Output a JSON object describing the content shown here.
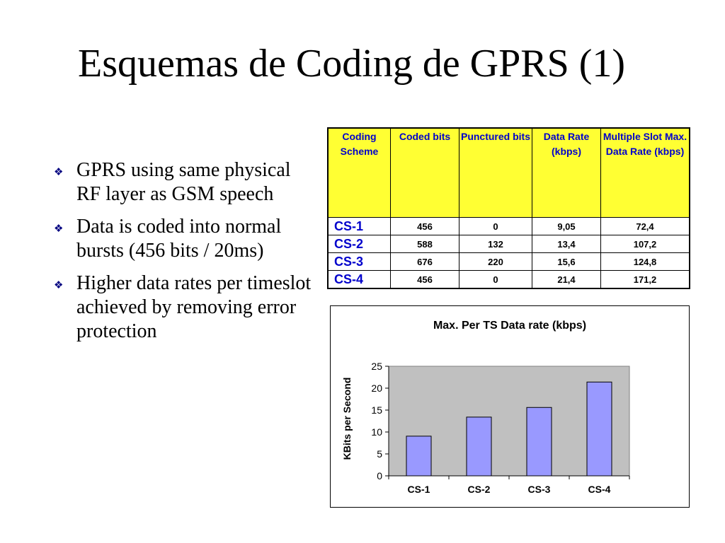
{
  "slide": {
    "title": "Esquemas de Coding de GPRS (1)",
    "bullets": [
      "GPRS using same physical RF layer as GSM speech",
      "Data is coded into normal bursts (456 bits / 20ms)",
      "Higher data rates per timeslot achieved by removing error protection"
    ]
  },
  "table": {
    "headers": [
      "Coding Scheme",
      "Coded bits",
      "Punctured bits",
      "Data Rate (kbps)",
      "Multiple Slot Max. Data Rate (kbps)"
    ],
    "rows": [
      [
        "CS-1",
        "456",
        "0",
        "9,05",
        "72,4"
      ],
      [
        "CS-2",
        "588",
        "132",
        "13,4",
        "107,2"
      ],
      [
        "CS-3",
        "676",
        "220",
        "15,6",
        "124,8"
      ],
      [
        "CS-4",
        "456",
        "0",
        "21,4",
        "171,2"
      ]
    ]
  },
  "chart_data": {
    "type": "bar",
    "title": "Max. Per TS Data rate (kbps)",
    "ylabel": "KBits per Second",
    "xlabel": "",
    "categories": [
      "CS-1",
      "CS-2",
      "CS-3",
      "CS-4"
    ],
    "values": [
      9.05,
      13.4,
      15.6,
      21.4
    ],
    "ylim": [
      0,
      25
    ],
    "yticks": [
      0,
      5,
      10,
      15,
      20,
      25
    ],
    "grid": false,
    "legend": "none",
    "colors": {
      "bar": "#9999ff",
      "plot_bg": "#c0c0c0"
    }
  }
}
